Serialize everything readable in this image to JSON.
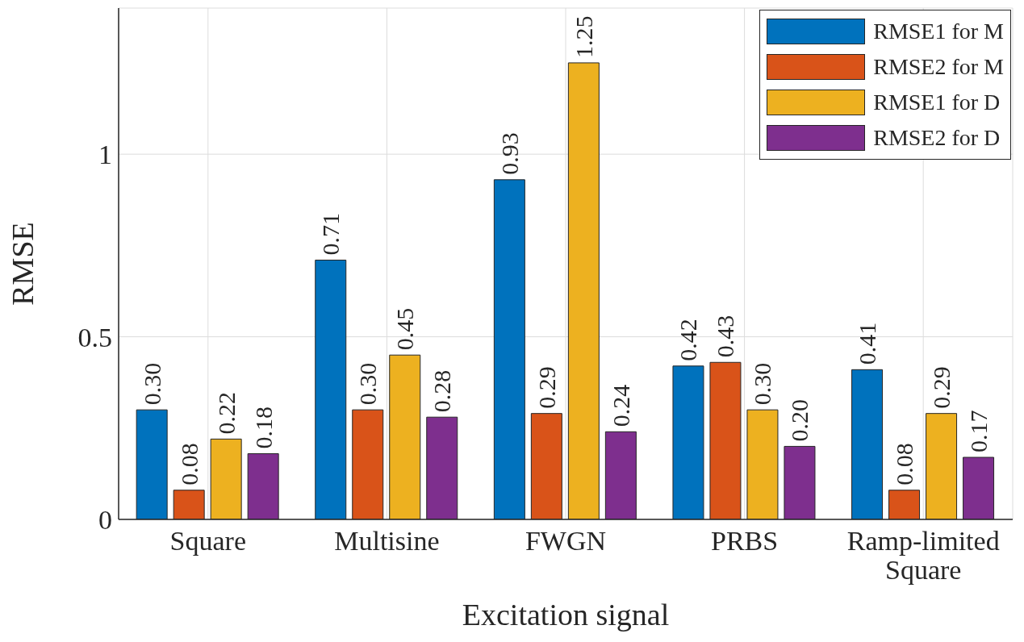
{
  "chart_data": {
    "type": "bar",
    "xlabel": "Excitation signal",
    "ylabel": "RMSE",
    "categories": [
      "Square",
      "Multisine",
      "FWGN",
      "PRBS",
      "Ramp-limited Square"
    ],
    "series": [
      {
        "name": "RMSE1 for M",
        "color": "#0072bd",
        "values": [
          0.3,
          0.71,
          0.93,
          0.42,
          0.41
        ],
        "value_labels": [
          "0.30",
          "0.71",
          "0.93",
          "0.42",
          "0.41"
        ]
      },
      {
        "name": "RMSE2 for M",
        "color": "#d95319",
        "values": [
          0.08,
          0.3,
          0.29,
          0.43,
          0.08
        ],
        "value_labels": [
          "0.08",
          "0.30",
          "0.29",
          "0.43",
          "0.08"
        ]
      },
      {
        "name": "RMSE1 for D",
        "color": "#edb120",
        "values": [
          0.22,
          0.45,
          1.25,
          0.3,
          0.29
        ],
        "value_labels": [
          "0.22",
          "0.45",
          "1.25",
          "0.30",
          "0.29"
        ]
      },
      {
        "name": "RMSE2 for D",
        "color": "#7e2f8e",
        "values": [
          0.18,
          0.28,
          0.24,
          0.2,
          0.17
        ],
        "value_labels": [
          "0.18",
          "0.28",
          "0.24",
          "0.20",
          "0.17"
        ]
      }
    ],
    "ylim": [
      0,
      1.4
    ],
    "yticks": [
      0,
      0.5,
      1
    ],
    "grid": true,
    "legend": "top right"
  }
}
